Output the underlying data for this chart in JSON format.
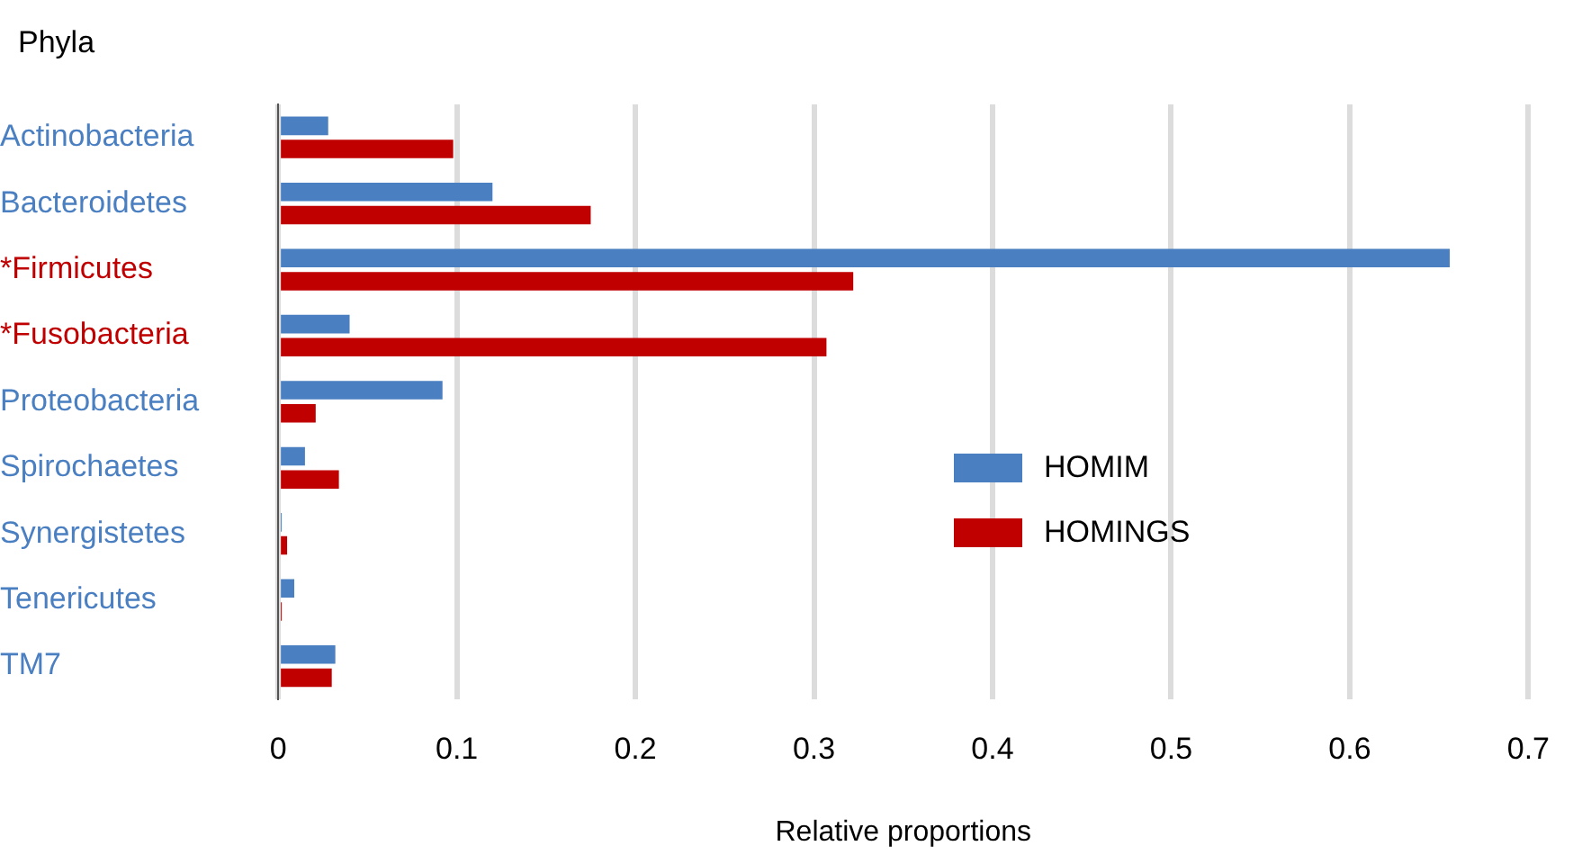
{
  "chart_data": {
    "type": "bar",
    "orientation": "horizontal",
    "ylabel": "Phyla",
    "xlabel": "Relative proportions",
    "categories": [
      "Actinobacteria",
      "Bacteroidetes",
      "*Firmicutes",
      "*Fusobacteria",
      "Proteobacteria",
      "Spirochaetes",
      "Synergistetes",
      "Tenericutes",
      "TM7"
    ],
    "series": [
      {
        "name": "HOMIM",
        "color": "#4a7fc1",
        "values": [
          0.028,
          0.12,
          0.656,
          0.04,
          0.092,
          0.015,
          0.002,
          0.009,
          0.032
        ]
      },
      {
        "name": "HOMINGS",
        "color": "#c00000",
        "values": [
          0.098,
          0.175,
          0.322,
          0.307,
          0.021,
          0.034,
          0.005,
          0.002,
          0.03
        ]
      }
    ],
    "xlim": [
      0,
      0.7
    ],
    "xticks": [
      0,
      0.1,
      0.2,
      0.3,
      0.4,
      0.5,
      0.6,
      0.7
    ],
    "grid": "x",
    "legend": "right"
  }
}
